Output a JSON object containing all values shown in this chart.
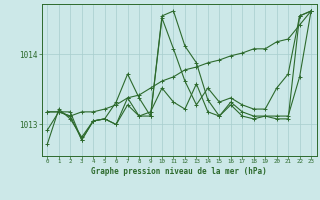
{
  "title": "Graphe pression niveau de la mer (hPa)",
  "background_color": "#cce8e8",
  "line_color": "#2d6a2d",
  "x_ticks": [
    0,
    1,
    2,
    3,
    4,
    5,
    6,
    7,
    8,
    9,
    10,
    11,
    12,
    13,
    14,
    15,
    16,
    17,
    18,
    19,
    20,
    21,
    22,
    23
  ],
  "y_ticks": [
    1013,
    1014
  ],
  "ylim": [
    1012.55,
    1014.72
  ],
  "xlim": [
    -0.5,
    23.5
  ],
  "series": [
    [
      1012.72,
      1013.22,
      1013.08,
      1012.82,
      1013.05,
      1013.08,
      1013.0,
      1013.38,
      1013.12,
      1013.12,
      1014.55,
      1014.62,
      1014.12,
      1013.88,
      1013.35,
      1013.12,
      1013.28,
      1013.12,
      1013.08,
      1013.12,
      1013.08,
      1013.08,
      1014.55,
      1014.62
    ],
    [
      1013.18,
      1013.18,
      1013.12,
      1012.78,
      1013.05,
      1013.08,
      1013.0,
      1013.28,
      1013.12,
      1013.18,
      1013.52,
      1013.32,
      1013.22,
      1013.58,
      1013.18,
      1013.12,
      1013.32,
      1013.18,
      1013.12,
      1013.12,
      1013.12,
      1013.12,
      1013.68,
      1014.62
    ],
    [
      1012.92,
      1013.18,
      1013.18,
      1012.78,
      1013.05,
      1013.08,
      1013.32,
      1013.72,
      1013.38,
      1013.12,
      1014.52,
      1014.08,
      1013.62,
      1013.28,
      1013.52,
      1013.32,
      1013.38,
      1013.28,
      1013.22,
      1013.22,
      1013.52,
      1013.72,
      1014.55,
      1014.62
    ],
    [
      1013.18,
      1013.18,
      1013.12,
      1013.18,
      1013.18,
      1013.22,
      1013.28,
      1013.38,
      1013.42,
      1013.52,
      1013.62,
      1013.68,
      1013.78,
      1013.82,
      1013.88,
      1013.92,
      1013.98,
      1014.02,
      1014.08,
      1014.08,
      1014.18,
      1014.22,
      1014.42,
      1014.62
    ]
  ]
}
